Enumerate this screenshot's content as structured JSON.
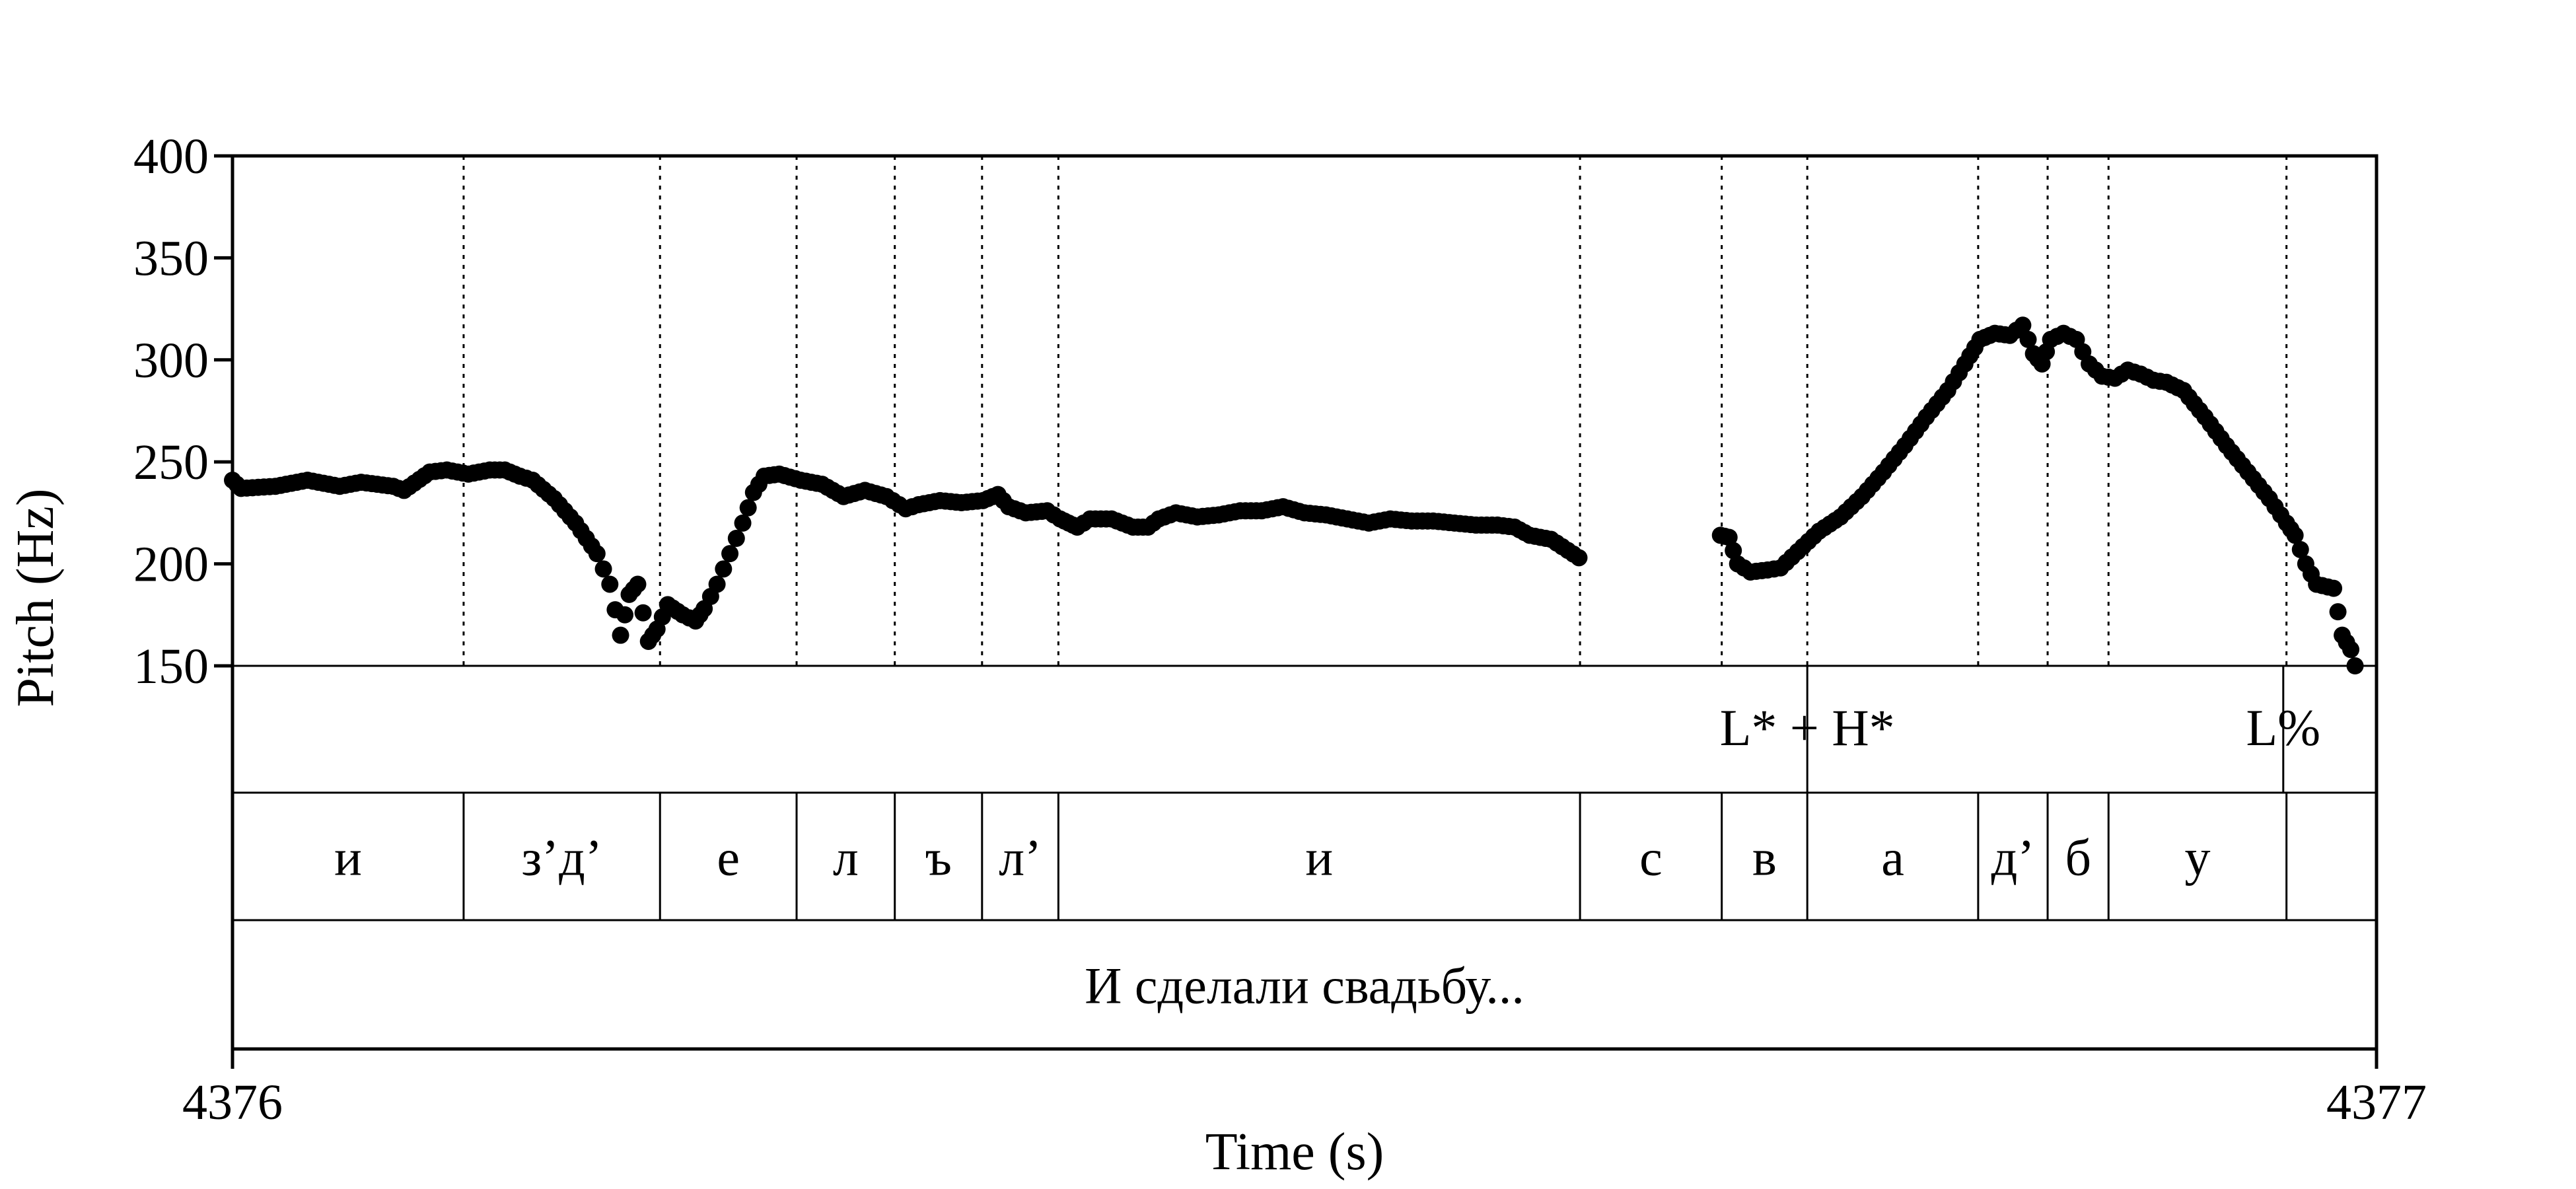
{
  "chart_data": {
    "type": "scatter",
    "title": "",
    "xlabel": "Time (s)",
    "ylabel": "Pitch (Hz)",
    "xlim": [
      4376,
      4377
    ],
    "ylim": [
      150,
      400
    ],
    "x_ticks": [
      "4376",
      "4377"
    ],
    "y_ticks": [
      "150",
      "200",
      "250",
      "300",
      "350",
      "400"
    ],
    "grid": false,
    "legend": "none",
    "point_color": "#000000",
    "tone_tier": [
      {
        "label": "L* + H*",
        "t": 4376.7345
      },
      {
        "label": "L%",
        "t": 4376.9565
      }
    ],
    "segment_tier": [
      {
        "label": "и",
        "start": 4376.0,
        "end": 4376.1078
      },
      {
        "label": "з’д’",
        "start": 4376.1078,
        "end": 4376.1994
      },
      {
        "label": "е",
        "start": 4376.1994,
        "end": 4376.2631
      },
      {
        "label": "л",
        "start": 4376.2631,
        "end": 4376.3089
      },
      {
        "label": "ъ",
        "start": 4376.3089,
        "end": 4376.3496
      },
      {
        "label": "л’",
        "start": 4376.3496,
        "end": 4376.3852
      },
      {
        "label": "и",
        "start": 4376.3852,
        "end": 4376.6285
      },
      {
        "label": "с",
        "start": 4376.6285,
        "end": 4376.6946
      },
      {
        "label": "в",
        "start": 4376.6946,
        "end": 4376.7345
      },
      {
        "label": "а",
        "start": 4376.7345,
        "end": 4376.8142
      },
      {
        "label": "д’",
        "start": 4376.8142,
        "end": 4376.8466
      },
      {
        "label": "б",
        "start": 4376.8466,
        "end": 4376.875
      },
      {
        "label": "у",
        "start": 4376.875,
        "end": 4376.958
      },
      {
        "label": "",
        "start": 4376.958,
        "end": 4377.0
      }
    ],
    "utterance_tier": [
      {
        "label": "И сделали свадьбу...",
        "start": 4376.0,
        "end": 4377.0
      }
    ],
    "pitch_anchors": [
      [
        4376.0,
        241
      ],
      [
        4376.004,
        237
      ],
      [
        4376.02,
        238
      ],
      [
        4376.035,
        241
      ],
      [
        4376.05,
        238
      ],
      [
        4376.06,
        240
      ],
      [
        4376.075,
        238
      ],
      [
        4376.08,
        236
      ],
      [
        4376.092,
        245
      ],
      [
        4376.1,
        246
      ],
      [
        4376.11,
        244
      ],
      [
        4376.12,
        246
      ],
      [
        4376.127,
        246
      ],
      [
        4376.134,
        243
      ],
      [
        4376.14,
        241
      ],
      [
        4376.15,
        232
      ],
      [
        4376.16,
        220
      ],
      [
        4376.17,
        205
      ],
      [
        4376.176,
        190
      ],
      [
        4376.181,
        165
      ],
      [
        4376.185,
        185
      ],
      [
        4376.189,
        190
      ],
      [
        4376.194,
        162
      ],
      [
        4376.198,
        168
      ],
      [
        4376.203,
        180
      ],
      [
        4376.21,
        175
      ],
      [
        4376.216,
        172
      ],
      [
        4376.22,
        178
      ],
      [
        4376.226,
        190
      ],
      [
        4376.232,
        205
      ],
      [
        4376.238,
        220
      ],
      [
        4376.243,
        235
      ],
      [
        4376.248,
        243
      ],
      [
        4376.255,
        244
      ],
      [
        4376.265,
        241
      ],
      [
        4376.275,
        239
      ],
      [
        4376.285,
        233
      ],
      [
        4376.295,
        236
      ],
      [
        4376.305,
        233
      ],
      [
        4376.314,
        227
      ],
      [
        4376.32,
        229
      ],
      [
        4376.33,
        231
      ],
      [
        4376.34,
        230
      ],
      [
        4376.35,
        231
      ],
      [
        4376.357,
        234
      ],
      [
        4376.362,
        228
      ],
      [
        4376.37,
        225
      ],
      [
        4376.38,
        226
      ],
      [
        4376.386,
        222
      ],
      [
        4376.39,
        220
      ],
      [
        4376.394,
        218
      ],
      [
        4376.4,
        222
      ],
      [
        4376.41,
        222
      ],
      [
        4376.42,
        218
      ],
      [
        4376.427,
        218
      ],
      [
        4376.432,
        222
      ],
      [
        4376.44,
        225
      ],
      [
        4376.45,
        223
      ],
      [
        4376.46,
        224
      ],
      [
        4376.47,
        226
      ],
      [
        4376.48,
        226
      ],
      [
        4376.49,
        228
      ],
      [
        4376.5,
        225
      ],
      [
        4376.51,
        224
      ],
      [
        4376.52,
        222
      ],
      [
        4376.53,
        220
      ],
      [
        4376.54,
        222
      ],
      [
        4376.55,
        221
      ],
      [
        4376.56,
        221
      ],
      [
        4376.57,
        220
      ],
      [
        4376.58,
        219
      ],
      [
        4376.59,
        219
      ],
      [
        4376.598,
        218
      ],
      [
        4376.605,
        214
      ],
      [
        4376.615,
        212
      ],
      [
        4376.628,
        203
      ],
      [
        null,
        null
      ],
      [
        4376.694,
        214
      ],
      [
        4376.698,
        213
      ],
      [
        4376.702,
        200
      ],
      [
        4376.708,
        196
      ],
      [
        4376.716,
        197
      ],
      [
        4376.722,
        198
      ],
      [
        4376.73,
        206
      ],
      [
        4376.74,
        216
      ],
      [
        4376.75,
        223
      ],
      [
        4376.76,
        233
      ],
      [
        4376.77,
        245
      ],
      [
        4376.78,
        258
      ],
      [
        4376.79,
        272
      ],
      [
        4376.8,
        285
      ],
      [
        4376.808,
        298
      ],
      [
        4376.815,
        310
      ],
      [
        4376.822,
        313
      ],
      [
        4376.829,
        312
      ],
      [
        4376.835,
        317
      ],
      [
        4376.84,
        303
      ],
      [
        4376.844,
        298
      ],
      [
        4376.848,
        310
      ],
      [
        4376.854,
        313
      ],
      [
        4376.86,
        310
      ],
      [
        4376.866,
        298
      ],
      [
        4376.872,
        292
      ],
      [
        4376.878,
        291
      ],
      [
        4376.884,
        295
      ],
      [
        4376.89,
        293
      ],
      [
        4376.896,
        290
      ],
      [
        4376.902,
        289
      ],
      [
        4376.91,
        285
      ],
      [
        4376.92,
        272
      ],
      [
        4376.93,
        258
      ],
      [
        4376.94,
        245
      ],
      [
        4376.95,
        232
      ],
      [
        4376.958,
        220
      ],
      [
        4376.962,
        214
      ],
      [
        4376.967,
        200
      ],
      [
        4376.972,
        190
      ],
      [
        4376.98,
        188
      ],
      [
        4376.984,
        165
      ],
      [
        4376.988,
        158
      ],
      [
        4376.99,
        150
      ]
    ]
  }
}
